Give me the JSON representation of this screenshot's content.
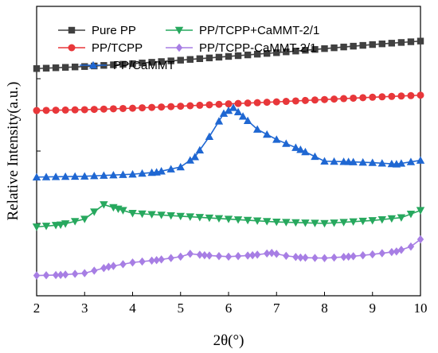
{
  "chart_data": {
    "type": "line",
    "xlabel": "2θ(°)",
    "ylabel": "Relative Intensity(a.u.)",
    "xlim": [
      2,
      10
    ],
    "ylim": [
      0,
      100
    ],
    "xticks": [
      "2",
      "3",
      "4",
      "5",
      "6",
      "7",
      "8",
      "9",
      "10"
    ],
    "yticks_labeled": false,
    "grid": false,
    "legend_position": "top-left",
    "series": [
      {
        "name": "Pure PP",
        "color": "#404040",
        "marker": "square",
        "x": [
          2.0,
          3.0,
          4.0,
          5.0,
          6.0,
          7.0,
          8.0,
          9.0,
          10.0
        ],
        "y": [
          78.5,
          79.2,
          80.2,
          81.4,
          82.7,
          84.0,
          85.4,
          86.8,
          88.0
        ]
      },
      {
        "name": "PP/TCPP",
        "color": "#e8373a",
        "marker": "circle",
        "x": [
          2.0,
          3.0,
          4.0,
          5.0,
          6.0,
          7.0,
          8.0,
          9.0,
          10.0
        ],
        "y": [
          64.0,
          64.3,
          64.8,
          65.5,
          66.3,
          67.0,
          67.8,
          68.6,
          69.3
        ]
      },
      {
        "name": "PP/CaMMT",
        "color": "#1f67d2",
        "marker": "triangle-up",
        "x": [
          2.0,
          3.0,
          4.0,
          4.5,
          5.0,
          5.3,
          5.6,
          5.9,
          6.1,
          6.3,
          6.6,
          7.0,
          7.5,
          8.0,
          8.5,
          9.0,
          9.5,
          10.0
        ],
        "y": [
          41.0,
          41.3,
          42.0,
          42.7,
          44.5,
          48.0,
          55.0,
          63.0,
          65.0,
          62.0,
          57.5,
          54.0,
          50.5,
          46.5,
          46.3,
          46.0,
          45.5,
          46.8
        ]
      },
      {
        "name": "PP/TCPP+CaMMT-2/1",
        "color": "#27a85e",
        "marker": "triangle-down",
        "x": [
          2.0,
          2.5,
          3.0,
          3.2,
          3.4,
          3.7,
          4.0,
          5.0,
          6.0,
          7.0,
          8.0,
          9.0,
          9.6,
          10.0
        ],
        "y": [
          23.8,
          24.5,
          26.5,
          29.0,
          31.5,
          30.0,
          28.5,
          27.5,
          26.5,
          25.5,
          25.0,
          26.0,
          27.0,
          29.5
        ]
      },
      {
        "name": "PP/TCPP-CaMMT-2/1",
        "color": "#a77ee4",
        "marker": "diamond",
        "x": [
          2.0,
          2.5,
          3.0,
          3.5,
          4.0,
          4.5,
          5.0,
          5.2,
          5.5,
          6.0,
          6.5,
          6.9,
          7.2,
          7.5,
          8.0,
          8.5,
          9.0,
          9.5,
          9.8,
          10.0
        ],
        "y": [
          7.0,
          7.2,
          7.8,
          10.0,
          11.5,
          12.3,
          13.5,
          14.5,
          14.0,
          13.5,
          14.0,
          14.8,
          13.8,
          13.2,
          13.0,
          13.5,
          14.3,
          15.3,
          17.0,
          19.5
        ]
      }
    ]
  }
}
